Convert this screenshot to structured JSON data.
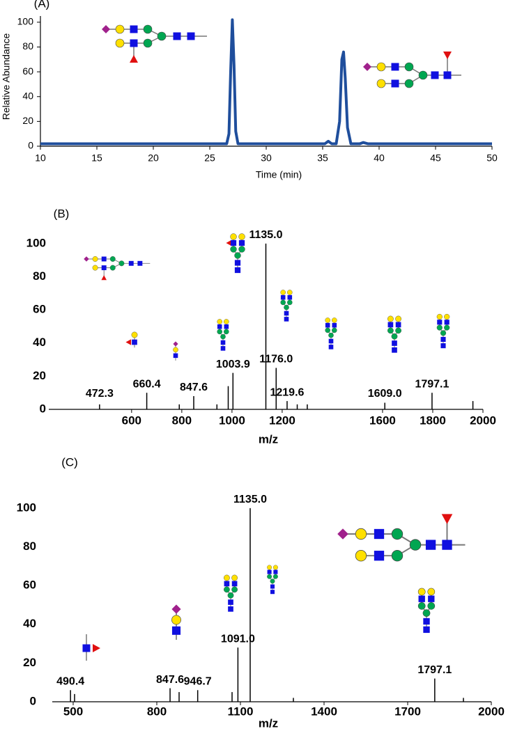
{
  "chart_data": [
    {
      "type": "line",
      "panel_label": "(A)",
      "xlabel": "Time (min)",
      "ylabel": "Relative Abundance",
      "x": [
        10,
        26.5,
        26.7,
        26.85,
        27.0,
        27.15,
        27.3,
        27.5,
        35.2,
        35.5,
        35.8,
        36.2,
        36.5,
        36.7,
        36.85,
        37.0,
        37.2,
        37.5,
        38.3,
        38.6,
        39,
        50
      ],
      "series": [
        {
          "color": "#1f4e9c",
          "values": [
            2,
            2,
            10,
            60,
            102,
            65,
            12,
            2,
            2,
            4,
            2,
            2,
            20,
            70,
            76,
            55,
            15,
            2,
            2,
            3,
            2,
            2
          ]
        }
      ],
      "xlim": [
        10,
        50
      ],
      "xticks": [
        10,
        15,
        20,
        25,
        30,
        35,
        40,
        45,
        50
      ],
      "ylim": [
        0,
        105
      ],
      "yticks": [
        0,
        20,
        40,
        60,
        80,
        100
      ]
    },
    {
      "type": "bar",
      "panel_label": "(B)",
      "xlabel": "m/z",
      "x": [
        472.3,
        660.4,
        790,
        847.6,
        940,
        985,
        1003.9,
        1135.0,
        1176.0,
        1219.6,
        1260,
        1300,
        1609.0,
        1797.1,
        1960
      ],
      "values": [
        3,
        10,
        3,
        8,
        3,
        14,
        22,
        100,
        25,
        5,
        3,
        3,
        4,
        10,
        5
      ],
      "x_labels": [
        "472.3",
        "660.4",
        null,
        "847.6",
        null,
        null,
        "1003.9",
        "1135.0",
        "1176.0",
        "1219.6",
        null,
        null,
        "1609.0",
        "1797.1",
        null
      ],
      "label_colors": [
        "#000000",
        "#e8141b",
        null,
        "#000000",
        null,
        null,
        "#e8141b",
        "#000000",
        "#e8141b",
        "#e8141b",
        null,
        null,
        "#000000",
        "#000000",
        null
      ],
      "color": "#000000",
      "xlim": [
        270,
        2000
      ],
      "xticks": [
        600,
        800,
        1000,
        1200,
        1600,
        1800,
        2000
      ],
      "ylim": [
        0,
        105
      ],
      "yticks": [
        0,
        20,
        40,
        60,
        80,
        100
      ]
    },
    {
      "type": "bar",
      "panel_label": "(C)",
      "xlabel": "m/z",
      "x": [
        490.4,
        505,
        847.6,
        880,
        946.7,
        1070,
        1091.0,
        1135.0,
        1290,
        1797.1,
        1900
      ],
      "values": [
        6,
        4,
        7,
        5,
        6,
        5,
        28,
        100,
        2,
        12,
        2
      ],
      "x_labels": [
        "490.4",
        null,
        "847.6",
        null,
        "946.7",
        null,
        "1091.0",
        "1135.0",
        null,
        "1797.1",
        null
      ],
      "label_colors": [
        "#2ecc2e",
        null,
        "#000000",
        null,
        "#000000",
        null,
        "#2ecc2e",
        "#000000",
        null,
        "#000000",
        null
      ],
      "color": "#000000",
      "xlim": [
        425,
        2000
      ],
      "xticks": [
        500,
        800,
        1100,
        1400,
        1700,
        2000
      ],
      "ylim": [
        0,
        105
      ],
      "yticks": [
        0,
        20,
        40,
        60,
        80,
        100
      ]
    }
  ]
}
